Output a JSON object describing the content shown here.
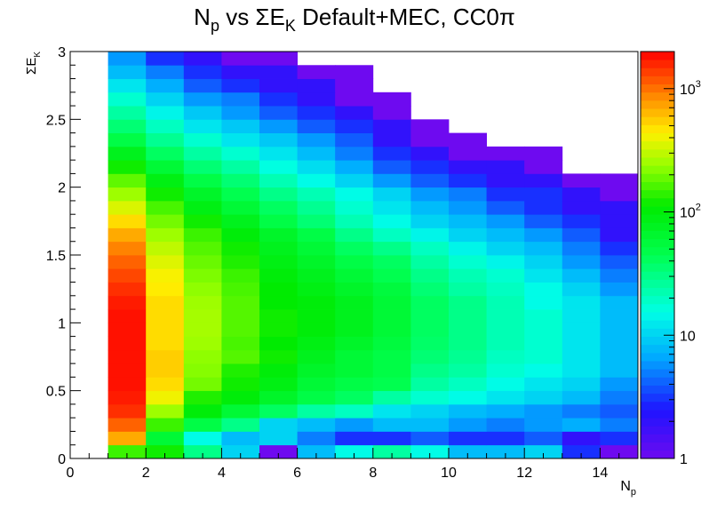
{
  "chart_data": {
    "type": "heatmap",
    "title_main": "N",
    "title_sub": "p",
    "title_mid": " vs ΣE",
    "title_sub2": "K",
    "title_end": " Default+MEC, CC0π",
    "xlabel_main": "N",
    "xlabel_sub": "p",
    "ylabel_main": "ΣE",
    "ylabel_sub": "K",
    "xlim": [
      0,
      15
    ],
    "ylim": [
      0,
      3
    ],
    "x_bins": 15,
    "y_bins": 30,
    "x_ticks": [
      "0",
      "2",
      "4",
      "6",
      "8",
      "10",
      "12",
      "14"
    ],
    "y_ticks": [
      "0",
      "0.5",
      "1",
      "1.5",
      "2",
      "2.5",
      "3"
    ],
    "colorbar": {
      "scale": "log",
      "zlim": [
        1,
        2000
      ],
      "ticks": [
        {
          "value": 1,
          "base": "1",
          "exp": ""
        },
        {
          "value": 10,
          "base": "10",
          "exp": ""
        },
        {
          "value": 100,
          "base": "10",
          "exp": "2"
        },
        {
          "value": 1000,
          "base": "10",
          "exp": "3"
        }
      ]
    },
    "grid": false,
    "z_rows_from_bottom": [
      [
        0,
        150,
        120,
        30,
        10,
        1,
        8,
        15,
        25,
        15,
        8,
        8,
        10,
        3,
        1
      ],
      [
        0,
        700,
        60,
        15,
        8,
        10,
        5,
        3,
        3,
        4,
        3,
        3,
        4,
        2,
        3
      ],
      [
        0,
        1100,
        150,
        50,
        30,
        10,
        8,
        6,
        8,
        8,
        6,
        5,
        6,
        7,
        5
      ],
      [
        0,
        1500,
        250,
        100,
        60,
        40,
        25,
        20,
        12,
        10,
        8,
        7,
        6,
        5,
        4
      ],
      [
        0,
        1700,
        400,
        130,
        100,
        70,
        50,
        40,
        25,
        18,
        15,
        12,
        10,
        8,
        5
      ],
      [
        0,
        1800,
        500,
        200,
        120,
        90,
        60,
        50,
        45,
        25,
        20,
        15,
        12,
        10,
        6
      ],
      [
        0,
        1800,
        550,
        220,
        130,
        100,
        70,
        60,
        50,
        30,
        25,
        18,
        15,
        12,
        8
      ],
      [
        0,
        1800,
        550,
        230,
        170,
        120,
        80,
        60,
        50,
        35,
        28,
        20,
        18,
        12,
        8
      ],
      [
        0,
        1800,
        500,
        250,
        160,
        110,
        90,
        70,
        55,
        38,
        30,
        22,
        18,
        12,
        8
      ],
      [
        0,
        1800,
        500,
        260,
        170,
        120,
        100,
        80,
        60,
        40,
        30,
        22,
        18,
        12,
        8
      ],
      [
        0,
        1800,
        500,
        260,
        170,
        120,
        100,
        80,
        60,
        40,
        30,
        22,
        18,
        12,
        8
      ],
      [
        0,
        1700,
        500,
        250,
        170,
        110,
        100,
        80,
        60,
        40,
        30,
        22,
        15,
        12,
        8
      ],
      [
        0,
        1500,
        450,
        230,
        160,
        110,
        90,
        70,
        55,
        35,
        25,
        20,
        15,
        10,
        6
      ],
      [
        0,
        1300,
        420,
        210,
        150,
        100,
        80,
        60,
        45,
        30,
        22,
        18,
        12,
        8,
        5
      ],
      [
        0,
        1100,
        360,
        190,
        130,
        90,
        70,
        50,
        40,
        25,
        18,
        14,
        10,
        6,
        4
      ],
      [
        0,
        900,
        300,
        170,
        120,
        80,
        60,
        40,
        30,
        20,
        14,
        10,
        8,
        5,
        3
      ],
      [
        0,
        700,
        250,
        150,
        100,
        70,
        50,
        30,
        20,
        14,
        10,
        8,
        6,
        4,
        2
      ],
      [
        0,
        500,
        200,
        120,
        80,
        50,
        35,
        22,
        15,
        10,
        8,
        6,
        4,
        3,
        2
      ],
      [
        0,
        350,
        160,
        90,
        60,
        40,
        28,
        18,
        12,
        8,
        6,
        4,
        3,
        2,
        2
      ],
      [
        0,
        250,
        120,
        70,
        45,
        30,
        22,
        15,
        10,
        6,
        5,
        3,
        3,
        2,
        1
      ],
      [
        0,
        180,
        90,
        50,
        35,
        22,
        15,
        10,
        6,
        4,
        3,
        2,
        2,
        1,
        1
      ],
      [
        0,
        120,
        60,
        35,
        25,
        16,
        11,
        7,
        4,
        3,
        2,
        2,
        1,
        0,
        0
      ],
      [
        0,
        80,
        40,
        25,
        18,
        12,
        8,
        5,
        3,
        2,
        1,
        1,
        1,
        0,
        0
      ],
      [
        0,
        50,
        28,
        18,
        12,
        9,
        6,
        4,
        2,
        1,
        1,
        0,
        0,
        0,
        0
      ],
      [
        0,
        35,
        20,
        12,
        9,
        6,
        4,
        3,
        2,
        1,
        0,
        0,
        0,
        0,
        0
      ],
      [
        0,
        25,
        14,
        9,
        6,
        4,
        3,
        2,
        1,
        0,
        0,
        0,
        0,
        0,
        0
      ],
      [
        0,
        18,
        10,
        6,
        5,
        3,
        2,
        1,
        1,
        0,
        0,
        0,
        0,
        0,
        0
      ],
      [
        0,
        12,
        7,
        4,
        3,
        2,
        2,
        1,
        0,
        0,
        0,
        0,
        0,
        0,
        0
      ],
      [
        0,
        8,
        5,
        3,
        2,
        2,
        1,
        1,
        0,
        0,
        0,
        0,
        0,
        0,
        0
      ],
      [
        0,
        6,
        3,
        2,
        1,
        1,
        0,
        0,
        0,
        0,
        0,
        0,
        0,
        0,
        0
      ]
    ]
  }
}
